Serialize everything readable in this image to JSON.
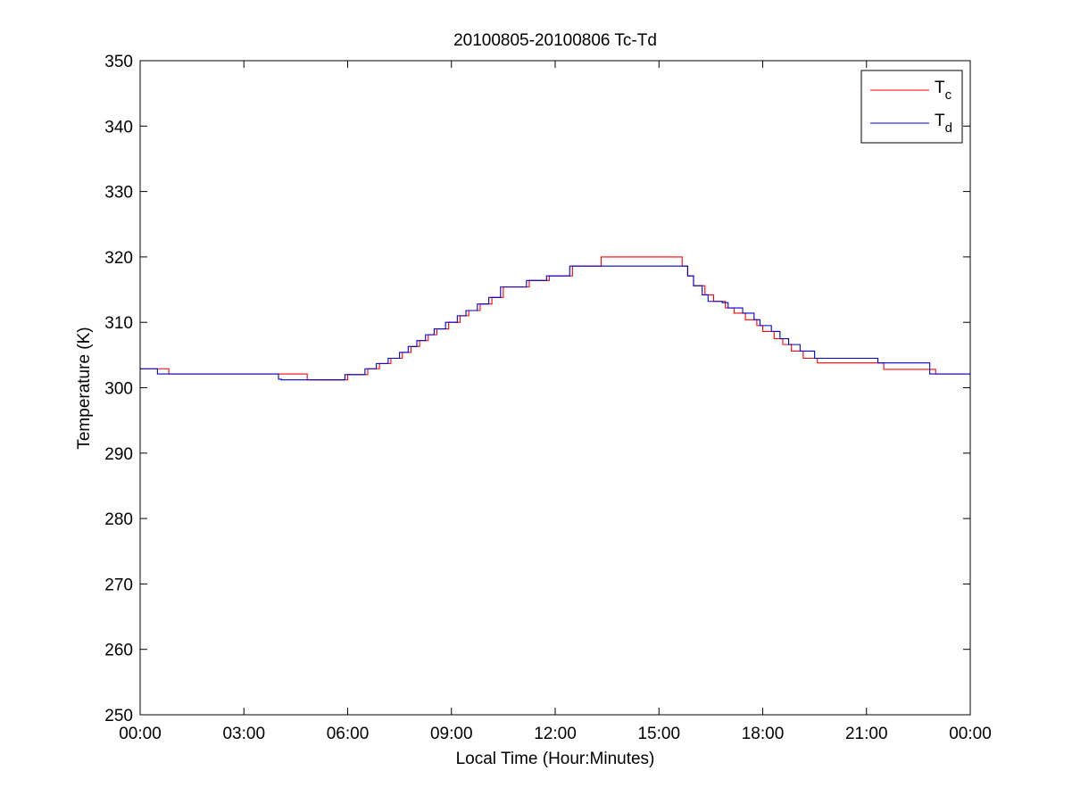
{
  "chart_data": {
    "type": "line",
    "title": "20100805-20100806 Tc-Td",
    "xlabel": "Local Time (Hour:Minutes)",
    "ylabel": "Temperature (K)",
    "xlim": [
      0,
      24
    ],
    "ylim": [
      250,
      350
    ],
    "x_ticks": [
      0,
      3,
      6,
      9,
      12,
      15,
      18,
      21,
      24
    ],
    "x_tick_labels": [
      "00:00",
      "03:00",
      "06:00",
      "09:00",
      "12:00",
      "15:00",
      "18:00",
      "21:00",
      "00:00"
    ],
    "y_ticks": [
      250,
      260,
      270,
      280,
      290,
      300,
      310,
      320,
      330,
      340,
      350
    ],
    "y_tick_labels": [
      "250",
      "260",
      "270",
      "280",
      "290",
      "300",
      "310",
      "320",
      "330",
      "340",
      "350"
    ],
    "grid": false,
    "legend_position": "top-right",
    "series": [
      {
        "name": "Tc",
        "legend_base": "T",
        "legend_sub": "c",
        "color": "#ff0000",
        "step": true,
        "x": [
          0.0,
          0.83,
          4.83,
          6.0,
          6.58,
          6.92,
          7.25,
          7.58,
          7.83,
          8.08,
          8.33,
          8.58,
          8.92,
          9.25,
          9.5,
          9.83,
          10.17,
          10.5,
          11.25,
          11.83,
          12.5,
          13.33,
          15.67,
          15.83,
          16.0,
          16.33,
          16.58,
          16.92,
          17.17,
          17.5,
          17.83,
          18.0,
          18.33,
          18.58,
          18.83,
          19.17,
          19.58,
          20.0,
          21.5,
          23.0,
          24.0
        ],
        "y": [
          302.9,
          302.1,
          301.2,
          302.0,
          302.9,
          303.7,
          304.5,
          305.4,
          306.3,
          307.2,
          308.1,
          309.0,
          310.0,
          311.0,
          311.8,
          312.8,
          313.8,
          315.4,
          316.4,
          317.1,
          318.6,
          320.0,
          318.6,
          317.1,
          315.6,
          314.2,
          313.2,
          312.2,
          311.4,
          310.4,
          309.5,
          308.6,
          307.5,
          306.6,
          305.6,
          304.5,
          303.8,
          303.8,
          302.8,
          302.1,
          302.1
        ]
      },
      {
        "name": "Td",
        "legend_base": "T",
        "legend_sub": "d",
        "color": "#0000cc",
        "step": true,
        "x": [
          0.0,
          0.5,
          4.0,
          4.08,
          5.92,
          6.5,
          6.83,
          7.17,
          7.5,
          7.75,
          8.0,
          8.25,
          8.5,
          8.83,
          9.17,
          9.42,
          9.75,
          10.08,
          10.42,
          11.17,
          11.75,
          12.42,
          13.33,
          15.67,
          15.83,
          16.0,
          16.25,
          16.42,
          16.83,
          17.0,
          17.42,
          17.75,
          17.92,
          18.25,
          18.5,
          18.75,
          19.08,
          19.5,
          21.33,
          22.83,
          24.0
        ],
        "y": [
          302.9,
          302.1,
          301.3,
          301.2,
          302.0,
          302.9,
          303.7,
          304.5,
          305.4,
          306.3,
          307.2,
          308.1,
          309.0,
          310.0,
          311.0,
          311.8,
          312.8,
          313.8,
          315.4,
          316.4,
          317.1,
          318.6,
          318.6,
          318.6,
          317.1,
          315.6,
          314.2,
          313.2,
          313.0,
          312.2,
          311.4,
          310.4,
          309.5,
          308.6,
          307.5,
          306.6,
          305.6,
          304.5,
          303.8,
          302.1,
          302.1
        ]
      }
    ]
  }
}
